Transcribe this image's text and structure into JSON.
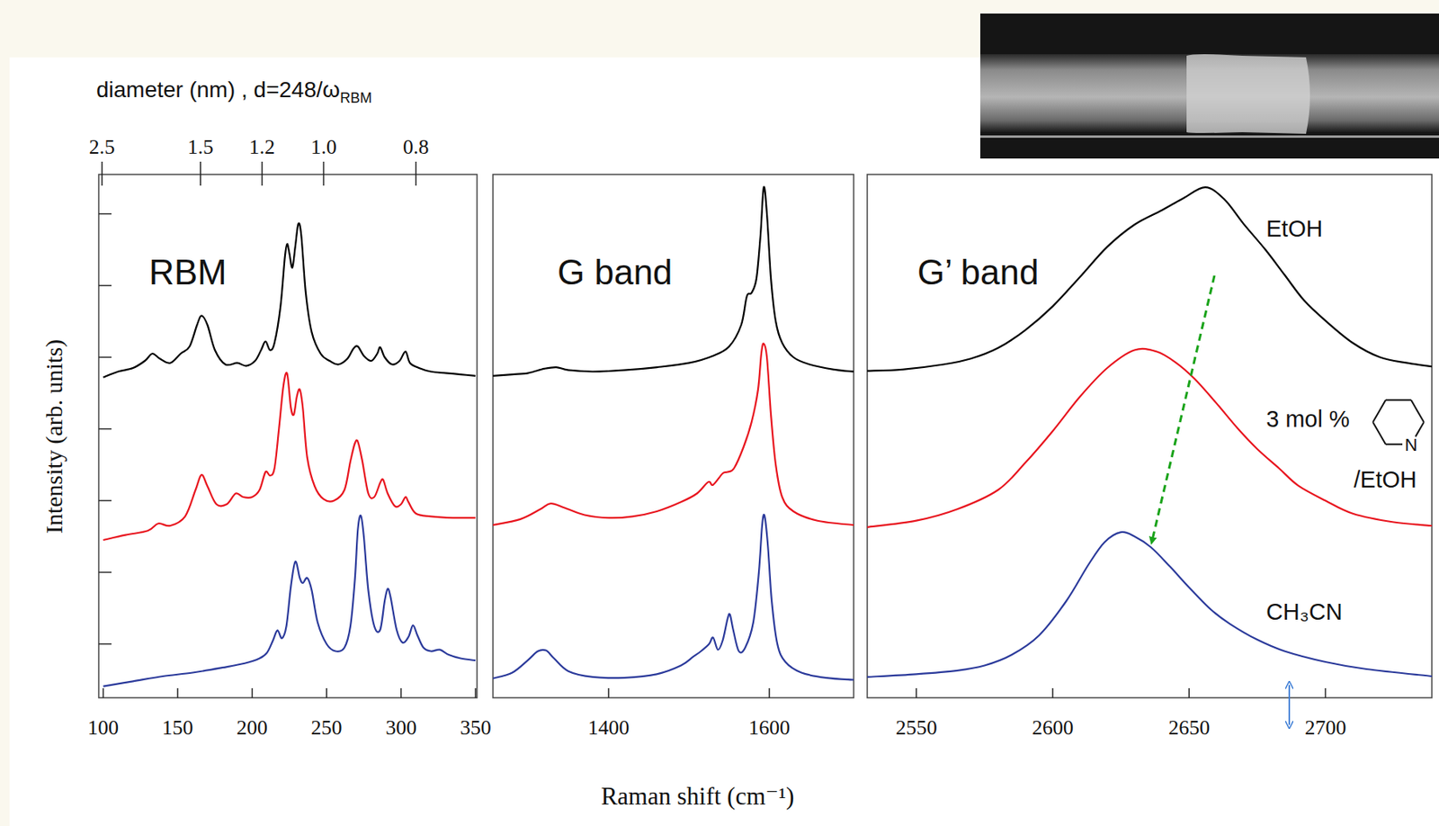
{
  "chart_data": {
    "type": "line",
    "x_label": "Raman shift (cm⁻¹)",
    "y_label": "Intensity (arb. units)",
    "ylim": [
      -0.75,
      6.55
    ],
    "yticks": [
      0,
      1,
      2,
      3,
      4,
      5,
      6
    ],
    "tick_labels": "x",
    "legend": "right",
    "series": [
      {
        "name": "EtOH",
        "color": "#000000"
      },
      {
        "name": "3 mol %/EtOH",
        "color": "#e8141e",
        "structure_atom": "N"
      },
      {
        "name": "CH₃CN",
        "color": "#2b3a9b"
      }
    ],
    "panels": [
      {
        "title": "RBM",
        "xlim": [
          97,
          351
        ],
        "xticks": [
          100,
          150,
          200,
          250,
          300,
          350
        ],
        "x2_label": "diameter (nm) , d=248/ω",
        "x2_label_sub": "RBM",
        "x2_factor": 248,
        "x2ticks": [
          2.5,
          1.5,
          1.2,
          {
            "value": 1.0,
            "label": "1.0"
          },
          0.8
        ],
        "series": [
          {
            "x": [
              100,
              110,
              120,
              128,
              133,
              138,
              145,
              152,
              158,
              163,
              166,
              170,
              175,
              182,
              190,
              196,
              202,
              206,
              209,
              212,
              215,
              219,
              222,
              223.5,
              225,
              227,
              229,
              231,
              233,
              236,
              240,
              246,
              252,
              258,
              264,
              268,
              271,
              275,
              280,
              284,
              286,
              289,
              294,
              299,
              303,
              306,
              312,
              320,
              330,
              340,
              350
            ],
            "values": [
              3.72,
              3.8,
              3.85,
              3.95,
              4.05,
              3.98,
              3.92,
              4.05,
              4.15,
              4.45,
              4.58,
              4.45,
              4.1,
              3.9,
              3.92,
              3.88,
              3.95,
              4.1,
              4.22,
              4.1,
              4.2,
              4.7,
              5.4,
              5.58,
              5.45,
              5.25,
              5.55,
              5.86,
              5.7,
              4.9,
              4.35,
              4.05,
              3.95,
              3.9,
              3.98,
              4.12,
              4.15,
              4.02,
              3.95,
              4.05,
              4.14,
              4.0,
              3.9,
              3.95,
              4.08,
              3.92,
              3.85,
              3.8,
              3.78,
              3.76,
              3.74
            ]
          },
          {
            "x": [
              100,
              115,
              130,
              137,
              145,
              155,
              162,
              166,
              170,
              176,
              183,
              189,
              194,
              200,
              205,
              209,
              212,
              215,
              218,
              221,
              223.5,
              226,
              228,
              230,
              232,
              234,
              237,
              242,
              248,
              255,
              262,
              266,
              269,
              271,
              274,
              278,
              282,
              286,
              288,
              291,
              296,
              300,
              303,
              305,
              310,
              320,
              335,
              350
            ],
            "values": [
              1.45,
              1.52,
              1.58,
              1.68,
              1.65,
              1.78,
              2.15,
              2.36,
              2.2,
              1.95,
              1.95,
              2.1,
              2.05,
              2.05,
              2.15,
              2.4,
              2.35,
              2.45,
              3.0,
              3.6,
              3.77,
              3.3,
              3.2,
              3.45,
              3.55,
              3.3,
              2.6,
              2.2,
              2.02,
              2.0,
              2.15,
              2.55,
              2.8,
              2.82,
              2.55,
              2.1,
              2.05,
              2.25,
              2.29,
              2.1,
              1.92,
              1.95,
              2.05,
              1.98,
              1.82,
              1.78,
              1.76,
              1.76
            ]
          },
          {
            "x": [
              100,
              120,
              140,
              160,
              180,
              195,
              205,
              210,
              214,
              217,
              220,
              223,
              226,
              229,
              232,
              234,
              237,
              240,
              244,
              250,
              256,
              262,
              266,
              269,
              271,
              273,
              275,
              278,
              282,
              286,
              289,
              291,
              293,
              297,
              301,
              305,
              308,
              311,
              315,
              320,
              326,
              332,
              340,
              350
            ],
            "values": [
              -0.59,
              -0.52,
              -0.45,
              -0.4,
              -0.33,
              -0.27,
              -0.2,
              -0.12,
              0.05,
              0.19,
              0.08,
              0.25,
              0.8,
              1.15,
              0.92,
              0.85,
              0.92,
              0.75,
              0.3,
              0.0,
              -0.1,
              -0.05,
              0.25,
              0.9,
              1.6,
              1.79,
              1.5,
              0.75,
              0.25,
              0.2,
              0.6,
              0.77,
              0.65,
              0.2,
              0.02,
              0.1,
              0.26,
              0.12,
              -0.05,
              -0.1,
              -0.08,
              -0.15,
              -0.2,
              -0.23
            ]
          }
        ]
      },
      {
        "title": "G band",
        "xlim": [
          1256,
          1705
        ],
        "xticks": [
          1400,
          1600
        ],
        "series": [
          {
            "x": [
              1256,
              1280,
              1300,
              1320,
              1335,
              1350,
              1380,
              1420,
              1460,
              1500,
              1530,
              1550,
              1565,
              1572,
              1578,
              1584,
              1589,
              1593,
              1597,
              1602,
              1608,
              1616,
              1630,
              1650,
              1680,
              1705
            ],
            "values": [
              3.74,
              3.76,
              3.78,
              3.84,
              3.86,
              3.82,
              3.8,
              3.82,
              3.86,
              3.92,
              4.02,
              4.15,
              4.45,
              4.85,
              4.9,
              5.1,
              5.7,
              6.37,
              6.0,
              5.1,
              4.5,
              4.2,
              4.0,
              3.9,
              3.83,
              3.8
            ]
          },
          {
            "x": [
              1256,
              1290,
              1315,
              1328,
              1345,
              1370,
              1400,
              1430,
              1460,
              1490,
              1510,
              1524,
              1530,
              1542,
              1548,
              1556,
              1568,
              1578,
              1586,
              1590,
              1593,
              1597,
              1602,
              1608,
              1616,
              1630,
              1660,
              1705
            ],
            "values": [
              1.66,
              1.74,
              1.88,
              1.96,
              1.9,
              1.8,
              1.76,
              1.78,
              1.85,
              1.98,
              2.1,
              2.26,
              2.22,
              2.38,
              2.4,
              2.45,
              2.75,
              3.1,
              3.55,
              4.05,
              4.19,
              4.0,
              3.2,
              2.5,
              2.05,
              1.85,
              1.72,
              1.66
            ]
          },
          {
            "x": [
              1256,
              1280,
              1300,
              1312,
              1322,
              1332,
              1350,
              1380,
              1420,
              1460,
              1490,
              1505,
              1515,
              1525,
              1530,
              1536,
              1542,
              1548,
              1551,
              1555,
              1562,
              1570,
              1580,
              1587,
              1591,
              1594,
              1598,
              1603,
              1610,
              1620,
              1640,
              1670,
              1705
            ],
            "values": [
              -0.48,
              -0.4,
              -0.22,
              -0.1,
              -0.09,
              -0.2,
              -0.38,
              -0.46,
              -0.47,
              -0.42,
              -0.3,
              -0.18,
              -0.1,
              0.0,
              0.09,
              -0.08,
              0.05,
              0.35,
              0.41,
              0.2,
              -0.1,
              -0.05,
              0.3,
              1.0,
              1.65,
              1.79,
              1.4,
              0.6,
              0.0,
              -0.25,
              -0.4,
              -0.47,
              -0.5
            ]
          }
        ]
      },
      {
        "title": "G’ band",
        "xlim": [
          2532,
          2739
        ],
        "xticks": [
          2550,
          2600,
          2650,
          2700
        ],
        "series": [
          {
            "x": [
              2532,
              2545,
              2560,
              2570,
              2580,
              2590,
              2600,
              2610,
              2620,
              2630,
              2640,
              2648,
              2656,
              2663,
              2670,
              2678,
              2685,
              2692,
              2700,
              2710,
              2720,
              2730,
              2739
            ],
            "values": [
              3.81,
              3.83,
              3.9,
              3.98,
              4.13,
              4.38,
              4.71,
              5.12,
              5.54,
              5.85,
              6.05,
              6.22,
              6.37,
              6.2,
              5.86,
              5.5,
              5.15,
              4.8,
              4.51,
              4.2,
              4.0,
              3.92,
              3.87
            ]
          },
          {
            "x": [
              2532,
              2550,
              2565,
              2580,
              2590,
              2600,
              2610,
              2620,
              2630,
              2638,
              2645,
              2652,
              2660,
              2668,
              2675,
              2683,
              2690,
              2700,
              2710,
              2725,
              2739
            ],
            "values": [
              1.63,
              1.72,
              1.88,
              2.15,
              2.53,
              2.97,
              3.45,
              3.85,
              4.1,
              4.08,
              3.93,
              3.7,
              3.36,
              3.0,
              2.72,
              2.45,
              2.21,
              2.0,
              1.82,
              1.7,
              1.65
            ]
          },
          {
            "x": [
              2532,
              2550,
              2565,
              2575,
              2585,
              2595,
              2605,
              2613,
              2619,
              2625,
              2630,
              2636,
              2643,
              2650,
              2658,
              2665,
              2675,
              2685,
              2700,
              2715,
              2739
            ],
            "values": [
              -0.46,
              -0.42,
              -0.37,
              -0.3,
              -0.15,
              0.12,
              0.6,
              1.1,
              1.42,
              1.56,
              1.5,
              1.35,
              1.08,
              0.79,
              0.48,
              0.28,
              0.06,
              -0.1,
              -0.25,
              -0.35,
              -0.45
            ]
          }
        ]
      }
    ]
  }
}
